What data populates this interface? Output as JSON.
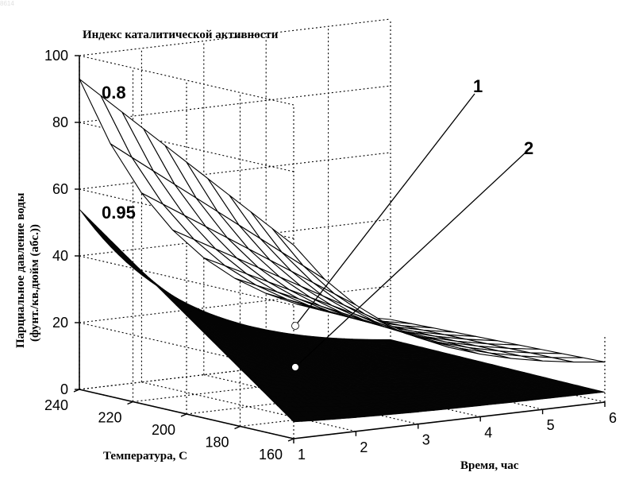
{
  "chart_data": {
    "type": "surface3d",
    "title": "Индекс каталитической активности",
    "zlabel_line1": "Парциальное давление воды",
    "zlabel_line2": "(фунт./кв.дюйм (абс.))",
    "xlabel": "Время, час",
    "ylabel": "Температура, С",
    "x_ticks": [
      "1",
      "2",
      "3",
      "4",
      "5",
      "6"
    ],
    "y_ticks": [
      "160",
      "180",
      "200",
      "220",
      "240"
    ],
    "z_ticks": [
      "0",
      "20",
      "40",
      "60",
      "80",
      "100"
    ],
    "xlim": [
      1,
      6
    ],
    "ylim": [
      160,
      240
    ],
    "zlim": [
      0,
      100
    ],
    "grid": true,
    "surfaces": [
      {
        "name": "0.8",
        "style": "wireframe",
        "corners": {
          "t1_T240": 93,
          "t1_T160": 58,
          "t6_T240": 10,
          "t6_T160": 12
        }
      },
      {
        "name": "0.95",
        "style": "filled",
        "corners": {
          "t1_T240": 54,
          "t1_T160": 5,
          "t6_T240": 4,
          "t6_T160": 3
        }
      }
    ],
    "annotations": [
      {
        "text": "1",
        "points_to": "0.8"
      },
      {
        "text": "2",
        "points_to": "0.95"
      }
    ]
  },
  "watermark": "8614",
  "colors": {
    "ink": "#000000",
    "background": "#ffffff",
    "surface_fill": "#050505"
  }
}
